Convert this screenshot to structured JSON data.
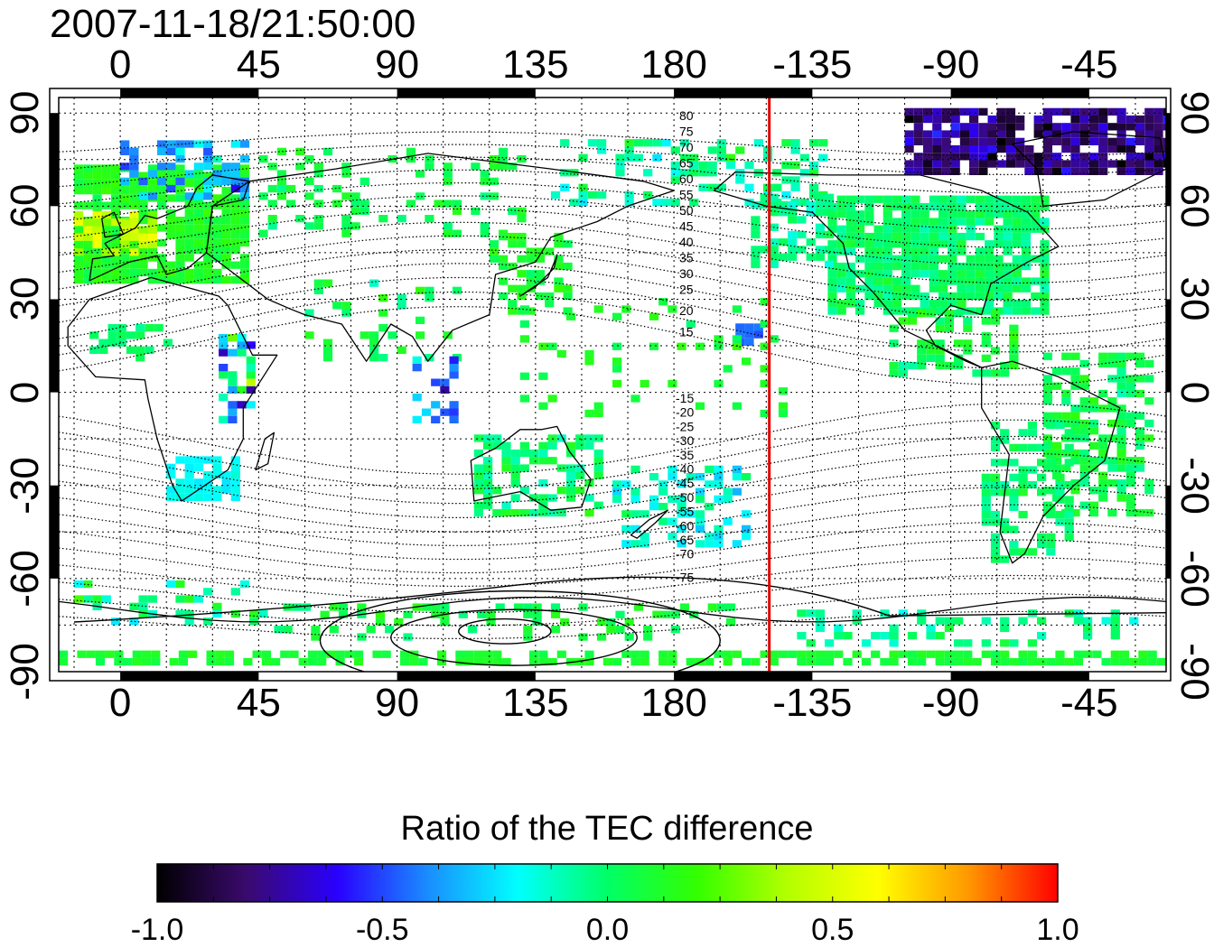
{
  "timestamp": "2007-11-18/21:50:00",
  "colorbar": {
    "title": "Ratio of the TEC difference",
    "ticks": [
      "-1.0",
      "-0.5",
      "0.0",
      "0.5",
      "1.0"
    ],
    "range": [
      -1.0,
      1.0
    ],
    "colormap": [
      "#000000",
      "#3a0a6e",
      "#2a00ff",
      "#1a8cff",
      "#00ffff",
      "#00ff66",
      "#33ff00",
      "#b4ff00",
      "#ffff00",
      "#ff9900",
      "#ff0000"
    ]
  },
  "map": {
    "lon_ticks": [
      "0",
      "45",
      "90",
      "135",
      "180",
      "-135",
      "-90",
      "-45"
    ],
    "lon_tick_values": [
      0,
      45,
      90,
      135,
      180,
      225,
      270,
      315
    ],
    "lat_ticks": [
      "90",
      "60",
      "30",
      "0",
      "-30",
      "-60",
      "-90"
    ],
    "lat_tick_values": [
      90,
      60,
      30,
      0,
      -30,
      -60,
      -90
    ],
    "lon_range": [
      -20,
      340
    ],
    "lat_range": [
      -90,
      95
    ],
    "meridian_marker_lon": 211,
    "meridian_marker_color": "#e00000",
    "contour_labels_north": [
      "80",
      "75",
      "70",
      "65",
      "60",
      "55",
      "50",
      "45",
      "40",
      "35",
      "30",
      "25",
      "20",
      "15"
    ],
    "contour_labels_south": [
      "-15",
      "-20",
      "-25",
      "-30",
      "-35",
      "-40",
      "-45",
      "-50",
      "-55",
      "-60",
      "-65",
      "-70",
      "-75"
    ]
  }
}
